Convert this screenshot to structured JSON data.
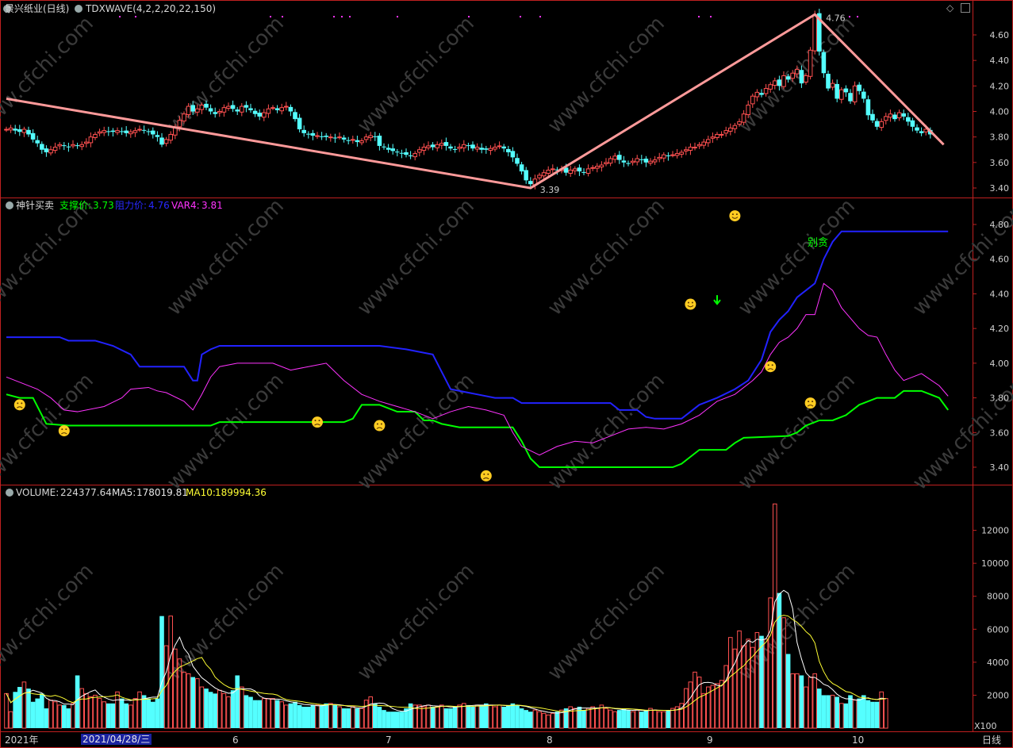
{
  "header": {
    "stock_title": "景兴纸业(日线)",
    "indicator": "TDXWAVE(4,2,2,20,22,150)"
  },
  "panel2": {
    "name": "神针买卖",
    "support_label": "支撑价:",
    "support_value": "3.73",
    "resist_label": "阻力价:",
    "resist_value": "4.76",
    "var4_label": "VAR4:",
    "var4_value": "3.81",
    "note": "别贪"
  },
  "panel3": {
    "vol_label": "VOLUME:",
    "vol_value": "224377.64",
    "ma5_label": "MA5:",
    "ma5_value": "178019.81",
    "ma10_label": "MA10:",
    "ma10_value": "189994.36",
    "unit": "X100"
  },
  "xaxis": {
    "year": "2021年",
    "selected_date": "2021/04/28/三",
    "months": [
      "6",
      "7",
      "8",
      "9",
      "10"
    ],
    "period": "日线"
  },
  "colors": {
    "up": "#ff5050",
    "down": "#54ffff",
    "wave": "#ff9a9a",
    "support": "#00ff00",
    "resist": "#2222ff",
    "var4": "#ff33ff",
    "ma5": "#ffffff",
    "ma10": "#ffff33",
    "grid": "#c02020"
  },
  "chart_data": [
    {
      "type": "candlestick",
      "title": "景兴纸业(日线)",
      "ylim": [
        3.3,
        4.76
      ],
      "yticks": [
        "4.60",
        "4.40",
        "4.20",
        "4.00",
        "3.80",
        "3.60",
        "3.40"
      ],
      "annotations": [
        {
          "text": "4.76"
        },
        {
          "text": "3.39"
        }
      ],
      "wave": [
        {
          "i": 0,
          "v": 4.1
        },
        {
          "i": 118,
          "v": 3.4
        },
        {
          "i": 182,
          "v": 4.76
        },
        {
          "i": 211,
          "v": 3.74
        }
      ],
      "close": [
        3.86,
        3.87,
        3.85,
        3.84,
        3.86,
        3.82,
        3.78,
        3.75,
        3.7,
        3.68,
        3.7,
        3.72,
        3.74,
        3.73,
        3.72,
        3.74,
        3.73,
        3.74,
        3.76,
        3.8,
        3.82,
        3.84,
        3.85,
        3.84,
        3.84,
        3.85,
        3.84,
        3.83,
        3.84,
        3.85,
        3.86,
        3.85,
        3.84,
        3.82,
        3.8,
        3.74,
        3.78,
        3.82,
        3.87,
        3.93,
        3.98,
        4.04,
        4.0,
        4.02,
        4.05,
        4.03,
        4.0,
        3.98,
        4.0,
        4.03,
        4.04,
        4.02,
        4.0,
        4.04,
        4.03,
        4.01,
        3.98,
        3.96,
        3.99,
        4.02,
        4.03,
        4.01,
        4.03,
        4.04,
        4.0,
        3.94,
        3.86,
        3.83,
        3.82,
        3.81,
        3.81,
        3.8,
        3.8,
        3.8,
        3.79,
        3.8,
        3.78,
        3.77,
        3.78,
        3.76,
        3.77,
        3.8,
        3.81,
        3.8,
        3.73,
        3.72,
        3.7,
        3.69,
        3.68,
        3.67,
        3.66,
        3.65,
        3.67,
        3.7,
        3.72,
        3.73,
        3.72,
        3.74,
        3.75,
        3.73,
        3.71,
        3.7,
        3.72,
        3.74,
        3.73,
        3.71,
        3.72,
        3.7,
        3.7,
        3.71,
        3.72,
        3.73,
        3.71,
        3.68,
        3.64,
        3.59,
        3.53,
        3.46,
        3.43,
        3.47,
        3.5,
        3.52,
        3.54,
        3.55,
        3.54,
        3.55,
        3.52,
        3.54,
        3.55,
        3.53,
        3.52,
        3.55,
        3.56,
        3.57,
        3.58,
        3.6,
        3.63,
        3.65,
        3.62,
        3.6,
        3.59,
        3.61,
        3.63,
        3.62,
        3.6,
        3.61,
        3.62,
        3.64,
        3.66,
        3.65,
        3.66,
        3.67,
        3.68,
        3.7,
        3.72,
        3.72,
        3.74,
        3.76,
        3.78,
        3.8,
        3.82,
        3.82,
        3.85,
        3.87,
        3.89,
        3.92,
        3.98,
        4.05,
        4.12,
        4.15,
        4.13,
        4.18,
        4.21,
        4.24,
        4.2,
        4.28,
        4.25,
        4.3,
        4.33,
        4.22,
        4.28,
        4.48,
        4.76,
        4.47,
        4.3,
        4.18,
        4.22,
        4.1,
        4.17,
        4.15,
        4.08,
        4.2,
        4.16,
        4.1,
        3.97,
        3.93,
        3.88,
        3.92,
        3.96,
        3.98,
        3.94,
        3.99,
        3.96,
        3.92,
        3.88,
        3.85,
        3.83,
        3.86,
        3.82
      ]
    },
    {
      "type": "line",
      "title": "神针买卖",
      "ylim": [
        3.35,
        4.9
      ],
      "yticks": [
        "4.80",
        "4.60",
        "4.40",
        "4.20",
        "4.00",
        "3.80",
        "3.60",
        "3.40"
      ],
      "series": [
        {
          "name": "支撑价",
          "points": [
            [
              0,
              3.82
            ],
            [
              3,
              3.8
            ],
            [
              6,
              3.8
            ],
            [
              8,
              3.7
            ],
            [
              9,
              3.65
            ],
            [
              14,
              3.64
            ],
            [
              30,
              3.64
            ],
            [
              46,
              3.64
            ],
            [
              48,
              3.66
            ],
            [
              62,
              3.66
            ],
            [
              76,
              3.66
            ],
            [
              78,
              3.68
            ],
            [
              80,
              3.76
            ],
            [
              84,
              3.76
            ],
            [
              88,
              3.72
            ],
            [
              92,
              3.72
            ],
            [
              94,
              3.67
            ],
            [
              96,
              3.67
            ],
            [
              98,
              3.65
            ],
            [
              102,
              3.63
            ],
            [
              114,
              3.63
            ],
            [
              116,
              3.55
            ],
            [
              118,
              3.45
            ],
            [
              120,
              3.4
            ],
            [
              150,
              3.4
            ],
            [
              152,
              3.42
            ],
            [
              154,
              3.46
            ],
            [
              156,
              3.5
            ],
            [
              162,
              3.5
            ],
            [
              164,
              3.54
            ],
            [
              166,
              3.57
            ],
            [
              176,
              3.58
            ],
            [
              178,
              3.6
            ],
            [
              180,
              3.64
            ],
            [
              183,
              3.67
            ],
            [
              186,
              3.67
            ],
            [
              189,
              3.7
            ],
            [
              192,
              3.76
            ],
            [
              196,
              3.8
            ],
            [
              200,
              3.8
            ],
            [
              202,
              3.84
            ],
            [
              204,
              3.84
            ],
            [
              206,
              3.84
            ],
            [
              208,
              3.82
            ],
            [
              210,
              3.8
            ],
            [
              212,
              3.73
            ]
          ]
        },
        {
          "name": "阻力价",
          "points": [
            [
              0,
              4.15
            ],
            [
              12,
              4.15
            ],
            [
              14,
              4.13
            ],
            [
              20,
              4.13
            ],
            [
              24,
              4.1
            ],
            [
              28,
              4.05
            ],
            [
              30,
              3.98
            ],
            [
              32,
              3.98
            ],
            [
              40,
              3.98
            ],
            [
              42,
              3.9
            ],
            [
              43,
              3.9
            ],
            [
              44,
              4.05
            ],
            [
              46,
              4.08
            ],
            [
              48,
              4.1
            ],
            [
              62,
              4.1
            ],
            [
              76,
              4.1
            ],
            [
              84,
              4.1
            ],
            [
              90,
              4.08
            ],
            [
              96,
              4.05
            ],
            [
              98,
              3.95
            ],
            [
              100,
              3.85
            ],
            [
              104,
              3.83
            ],
            [
              106,
              3.82
            ],
            [
              110,
              3.8
            ],
            [
              114,
              3.8
            ],
            [
              116,
              3.77
            ],
            [
              136,
              3.77
            ],
            [
              138,
              3.73
            ],
            [
              142,
              3.73
            ],
            [
              144,
              3.69
            ],
            [
              146,
              3.68
            ],
            [
              152,
              3.68
            ],
            [
              154,
              3.72
            ],
            [
              156,
              3.76
            ],
            [
              160,
              3.8
            ],
            [
              164,
              3.85
            ],
            [
              167,
              3.9
            ],
            [
              170,
              4.02
            ],
            [
              172,
              4.18
            ],
            [
              174,
              4.25
            ],
            [
              176,
              4.3
            ],
            [
              178,
              4.38
            ],
            [
              182,
              4.46
            ],
            [
              184,
              4.6
            ],
            [
              186,
              4.7
            ],
            [
              188,
              4.76
            ],
            [
              212,
              4.76
            ]
          ]
        },
        {
          "name": "VAR4",
          "points": [
            [
              0,
              3.92
            ],
            [
              4,
              3.88
            ],
            [
              7,
              3.85
            ],
            [
              10,
              3.8
            ],
            [
              13,
              3.73
            ],
            [
              16,
              3.72
            ],
            [
              22,
              3.75
            ],
            [
              26,
              3.8
            ],
            [
              28,
              3.85
            ],
            [
              32,
              3.86
            ],
            [
              34,
              3.84
            ],
            [
              36,
              3.83
            ],
            [
              40,
              3.78
            ],
            [
              42,
              3.73
            ],
            [
              44,
              3.82
            ],
            [
              46,
              3.92
            ],
            [
              48,
              3.98
            ],
            [
              52,
              4.0
            ],
            [
              60,
              4.0
            ],
            [
              64,
              3.96
            ],
            [
              68,
              3.98
            ],
            [
              72,
              4.0
            ],
            [
              76,
              3.9
            ],
            [
              80,
              3.82
            ],
            [
              84,
              3.78
            ],
            [
              88,
              3.75
            ],
            [
              92,
              3.72
            ],
            [
              96,
              3.68
            ],
            [
              100,
              3.72
            ],
            [
              104,
              3.75
            ],
            [
              108,
              3.73
            ],
            [
              112,
              3.7
            ],
            [
              114,
              3.6
            ],
            [
              116,
              3.52
            ],
            [
              120,
              3.47
            ],
            [
              124,
              3.52
            ],
            [
              128,
              3.55
            ],
            [
              132,
              3.54
            ],
            [
              136,
              3.58
            ],
            [
              140,
              3.62
            ],
            [
              144,
              3.63
            ],
            [
              148,
              3.62
            ],
            [
              152,
              3.65
            ],
            [
              156,
              3.7
            ],
            [
              160,
              3.78
            ],
            [
              164,
              3.82
            ],
            [
              168,
              3.9
            ],
            [
              170,
              3.95
            ],
            [
              172,
              4.05
            ],
            [
              174,
              4.12
            ],
            [
              176,
              4.15
            ],
            [
              178,
              4.2
            ],
            [
              180,
              4.28
            ],
            [
              182,
              4.28
            ],
            [
              184,
              4.46
            ],
            [
              186,
              4.42
            ],
            [
              188,
              4.32
            ],
            [
              190,
              4.26
            ],
            [
              192,
              4.2
            ],
            [
              194,
              4.16
            ],
            [
              196,
              4.15
            ],
            [
              198,
              4.05
            ],
            [
              200,
              3.96
            ],
            [
              202,
              3.9
            ],
            [
              206,
              3.94
            ],
            [
              210,
              3.87
            ],
            [
              212,
              3.81
            ]
          ]
        }
      ],
      "signals": [
        {
          "kind": "sad",
          "i": 3,
          "v": 3.76
        },
        {
          "kind": "sad",
          "i": 13,
          "v": 3.61
        },
        {
          "kind": "sad",
          "i": 70,
          "v": 3.66
        },
        {
          "kind": "sad",
          "i": 84,
          "v": 3.64
        },
        {
          "kind": "sad",
          "i": 108,
          "v": 3.35
        },
        {
          "kind": "happy",
          "i": 154,
          "v": 4.34
        },
        {
          "kind": "arrow",
          "i": 160,
          "v": 4.36
        },
        {
          "kind": "happy",
          "i": 164,
          "v": 4.85
        },
        {
          "kind": "sad",
          "i": 172,
          "v": 3.98
        },
        {
          "kind": "sad",
          "i": 181,
          "v": 3.77
        }
      ]
    },
    {
      "type": "bar",
      "title": "VOLUME",
      "ylim": [
        0,
        14000
      ],
      "yticks": [
        "12000",
        "10000",
        "8000",
        "6000",
        "4000",
        "2000"
      ],
      "volume": [
        2100,
        1000,
        2200,
        2500,
        2800,
        2400,
        1600,
        1800,
        2100,
        1200,
        1700,
        1600,
        1400,
        1400,
        1200,
        1500,
        3200,
        2400,
        2100,
        1900,
        2000,
        1800,
        1600,
        1500,
        1500,
        2200,
        1800,
        1500,
        1400,
        1800,
        2200,
        2000,
        1800,
        1600,
        1800,
        6800,
        5000,
        6800,
        4800,
        4200,
        3400,
        3300,
        3100,
        3000,
        2500,
        2400,
        2200,
        2100,
        2300,
        2100,
        1900,
        2300,
        3200,
        2500,
        2000,
        1900,
        1700,
        1700,
        1800,
        1800,
        1800,
        1700,
        1600,
        1400,
        1500,
        1600,
        1400,
        1300,
        1300,
        1400,
        1400,
        1400,
        1500,
        1500,
        1400,
        1300,
        1200,
        1200,
        1300,
        1200,
        1200,
        1700,
        1900,
        1500,
        1300,
        1100,
        1000,
        1000,
        1000,
        1000,
        1200,
        1500,
        1400,
        1400,
        1300,
        1400,
        1300,
        1300,
        1400,
        1200,
        1200,
        1300,
        1400,
        1500,
        1400,
        1300,
        1400,
        1400,
        1500,
        1400,
        1300,
        1400,
        1300,
        1400,
        1500,
        1400,
        1200,
        1100,
        1000,
        1100,
        1000,
        900,
        800,
        900,
        1000,
        1100,
        1200,
        1300,
        1200,
        1300,
        1100,
        1200,
        1300,
        1200,
        1400,
        1200,
        1100,
        1000,
        1100,
        1200,
        1100,
        1000,
        1100,
        1000,
        1100,
        1200,
        1100,
        1000,
        1000,
        1100,
        1200,
        1300,
        1500,
        2400,
        2800,
        3400,
        3100,
        2100,
        2500,
        2600,
        2700,
        2900,
        3800,
        5500,
        4800,
        5900,
        5000,
        5400,
        4900,
        5800,
        5600,
        5400,
        7900,
        13600,
        8200,
        6700,
        4500,
        3300,
        3300,
        3200,
        2500,
        3100,
        3300,
        2400,
        2000,
        2000,
        2000,
        1900,
        1500,
        1500,
        2000,
        1700,
        1800,
        2000,
        1700,
        1600,
        1600,
        2200,
        1800
      ],
      "ma5_label": "MA5",
      "ma10_label": "MA10"
    }
  ]
}
